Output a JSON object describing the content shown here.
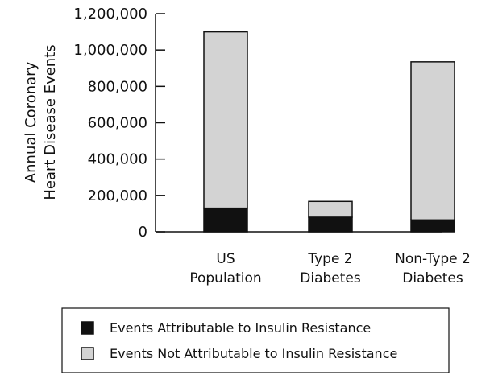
{
  "chart_data": {
    "type": "bar",
    "stacked": true,
    "categories": [
      [
        "US",
        "Population"
      ],
      [
        "Type 2",
        "Diabetes"
      ],
      [
        "Non-Type 2",
        "Diabetes"
      ]
    ],
    "series": [
      {
        "name": "Events Attributable to Insulin Resistance",
        "values": [
          130000,
          80000,
          65000
        ],
        "color": "#111111"
      },
      {
        "name": "Events Not Attributable to Insulin Resistance",
        "values": [
          970000,
          87000,
          870000
        ],
        "color": "#d3d3d3"
      }
    ],
    "ylabel": [
      "Annual Coronary",
      "Heart Disease Events"
    ],
    "ylim": [
      0,
      1200000
    ],
    "yticks": [
      0,
      200000,
      400000,
      600000,
      800000,
      1000000,
      1200000
    ],
    "ytick_labels": [
      "0",
      "200,000",
      "400,000",
      "600,000",
      "800,000",
      "1,000,000",
      "1,200,000"
    ],
    "grid": false,
    "legend_position": "bottom"
  }
}
